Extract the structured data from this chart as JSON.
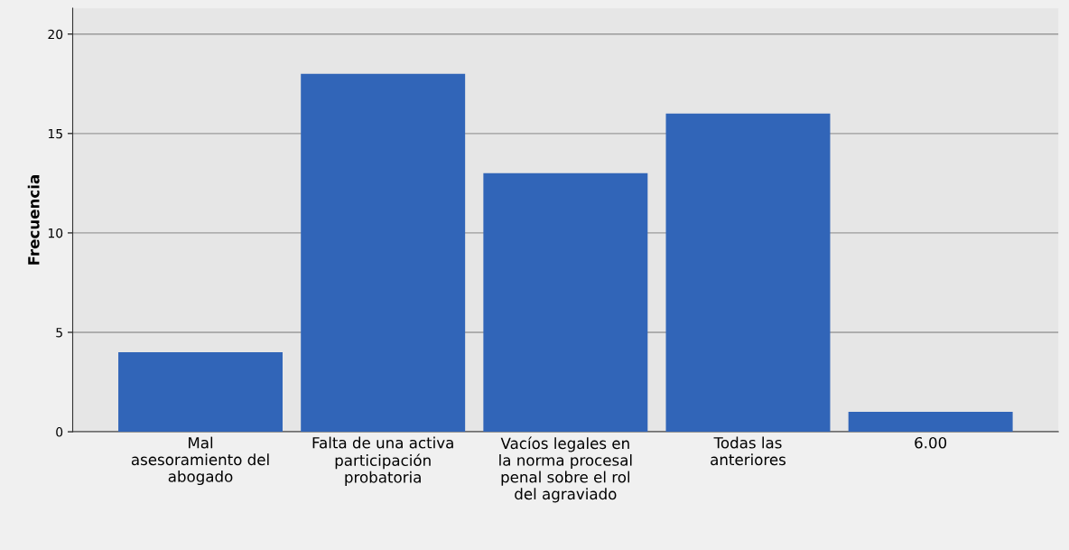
{
  "chart_data": {
    "type": "bar",
    "ylabel": "Frecuencia",
    "categories": [
      "Mal\nasesoramiento del\nabogado",
      "Falta de una activa\nparticipación\nprobatoria",
      "Vacíos legales en\nla norma procesal\npenal sobre el rol\ndel agraviado",
      "Todas las\nanteriores",
      "6.00"
    ],
    "values": [
      4,
      18,
      13,
      16,
      1
    ],
    "color": "#3165b8",
    "ylim": [
      0,
      21.3
    ],
    "yticks": [
      0,
      5,
      10,
      15,
      20
    ],
    "grid": "y",
    "legend": false
  }
}
